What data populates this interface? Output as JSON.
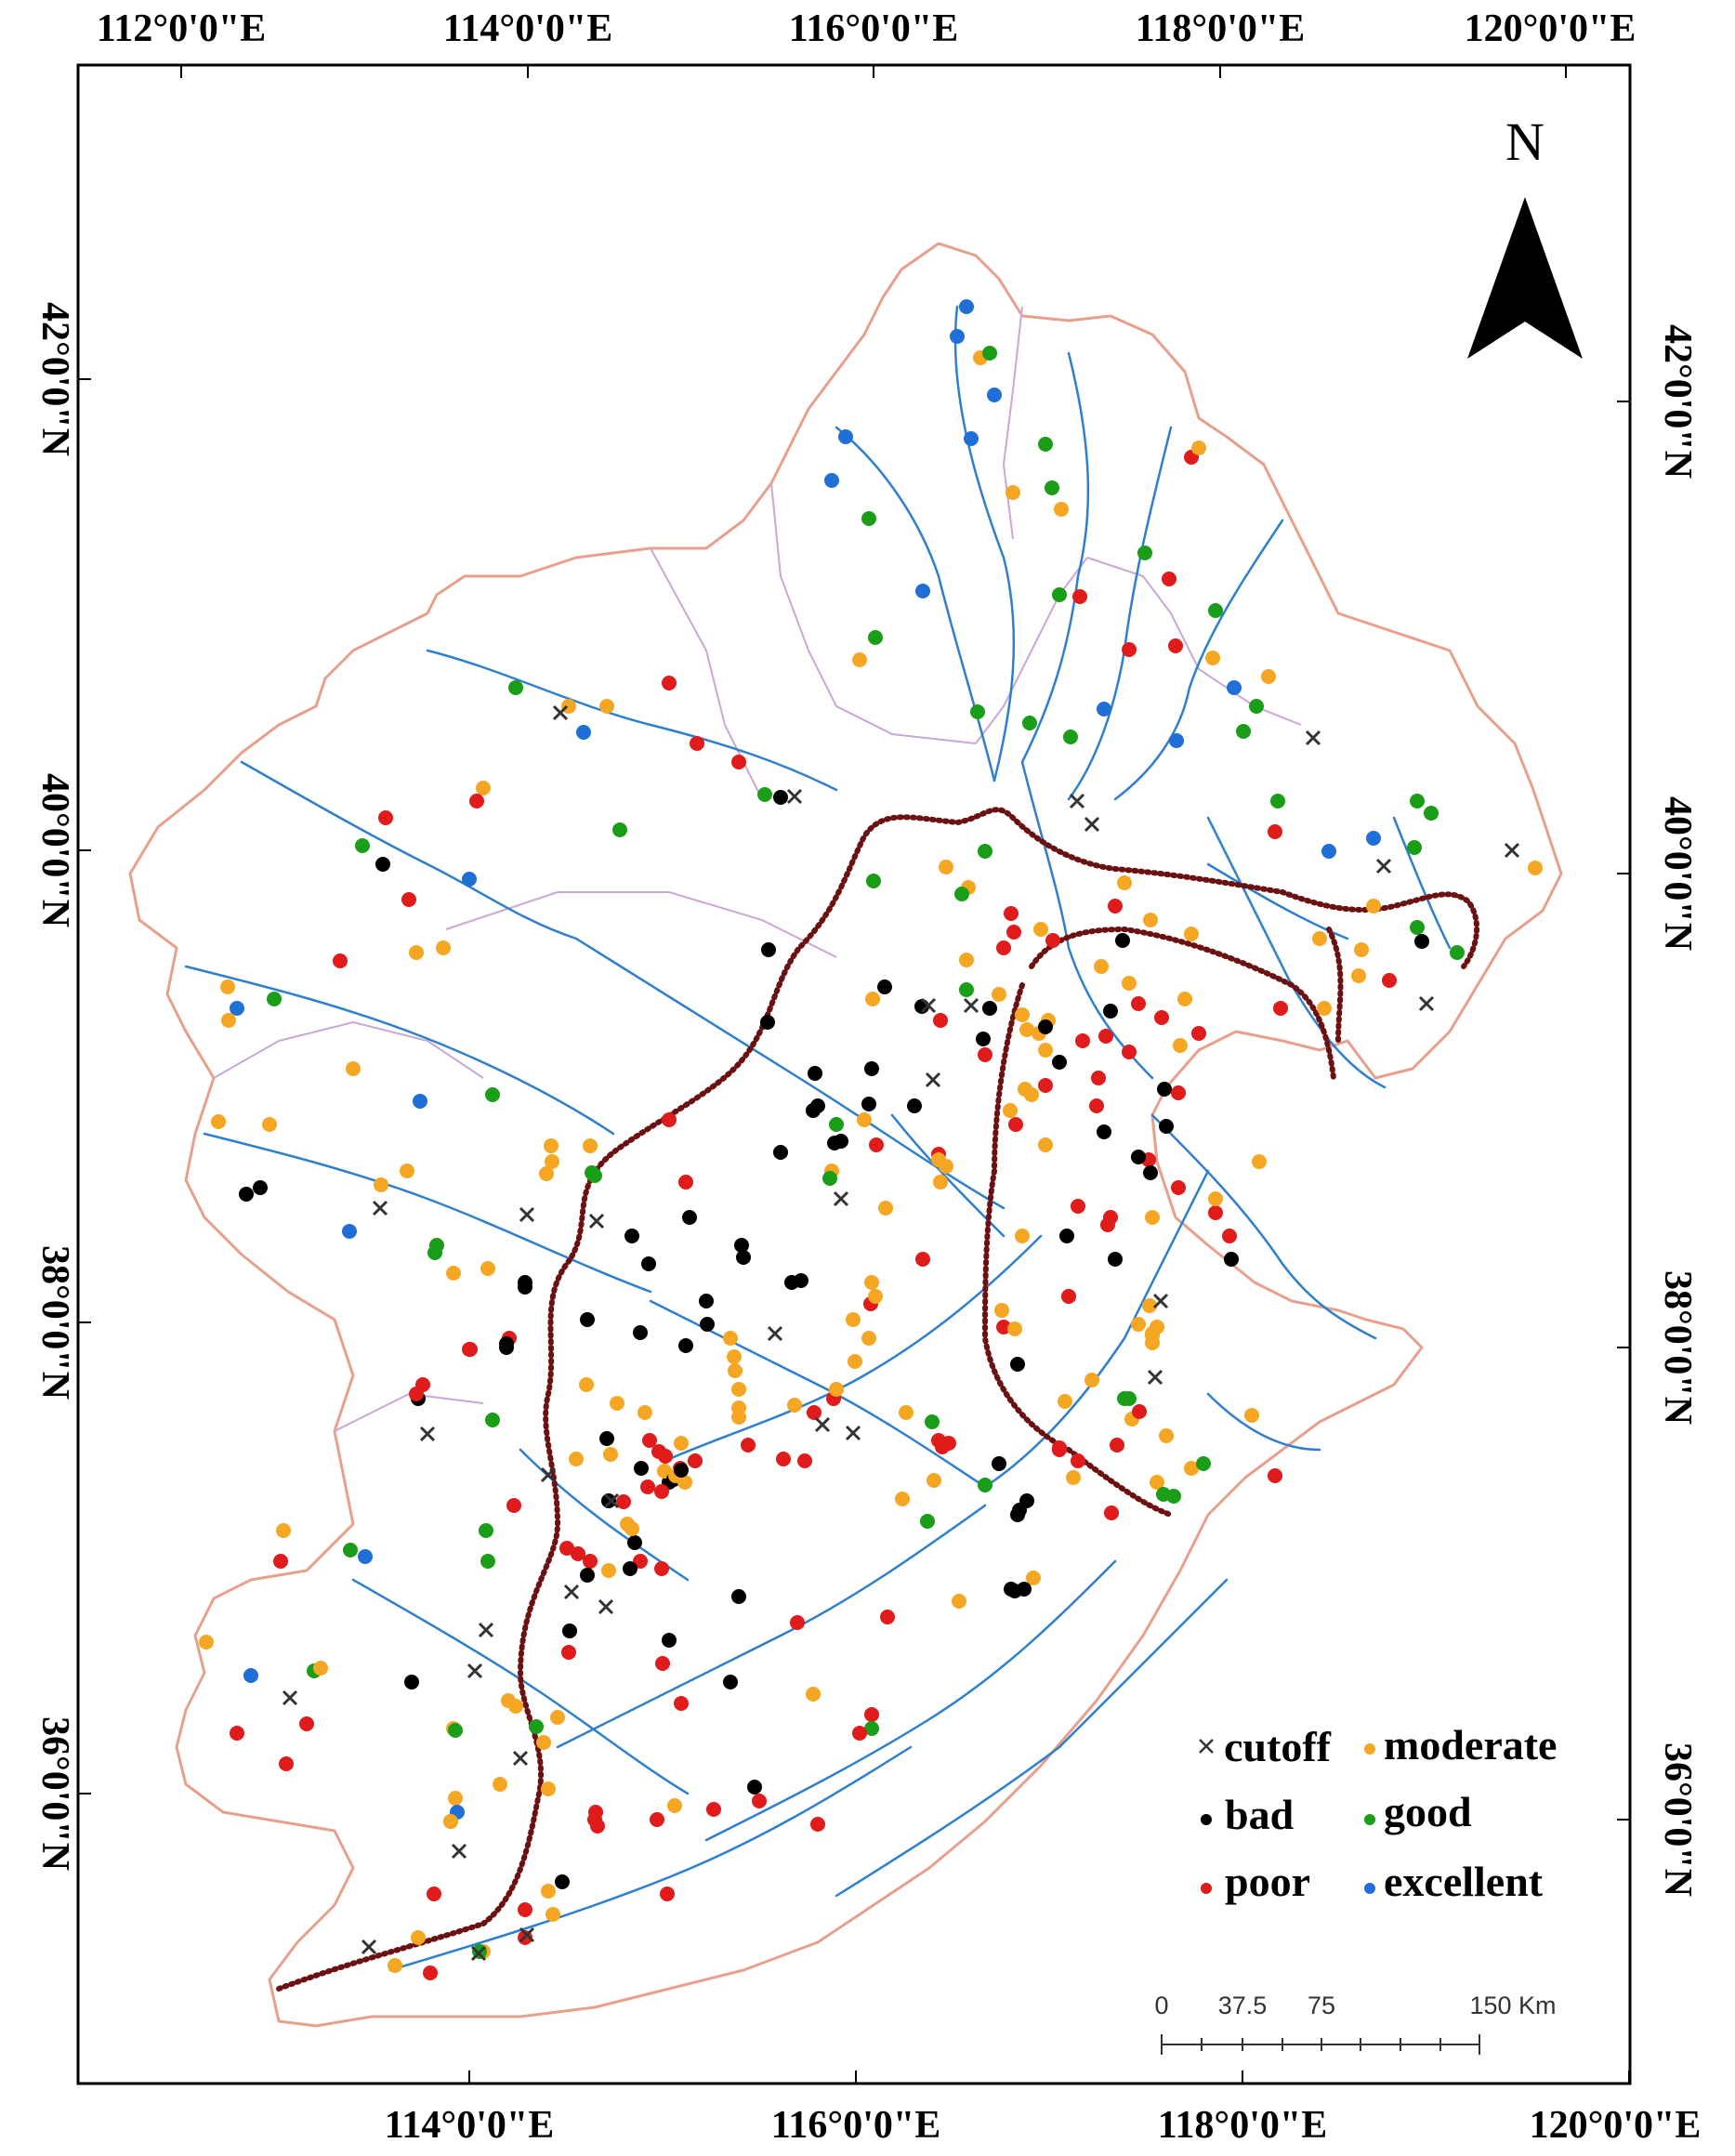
{
  "axes": {
    "top_labels": [
      "112°0'0\"E",
      "114°0'0\"E",
      "116°0'0\"E",
      "118°0'0\"E",
      "120°0'0\"E"
    ],
    "bottom_labels": [
      "114°0'0\"E",
      "116°0'0\"E",
      "118°0'0\"E",
      "120°0'0\"E"
    ],
    "left_labels": [
      "42°0'0\"N",
      "40°0'0\"N",
      "38°0'0\"N",
      "36°0'0\"N"
    ],
    "right_labels": [
      "42°0'0\"N",
      "40°0'0\"N",
      "38°0'0\"N",
      "36°0'0\"N"
    ]
  },
  "north_arrow": {
    "label": "N"
  },
  "legend": {
    "items": [
      {
        "label": "cutoff",
        "symbol": "cross",
        "color": "#333333"
      },
      {
        "label": "moderate",
        "symbol": "dot",
        "color": "#f5a623"
      },
      {
        "label": "bad",
        "symbol": "dot",
        "color": "#000000"
      },
      {
        "label": "good",
        "symbol": "dot",
        "color": "#1a9e1a"
      },
      {
        "label": "poor",
        "symbol": "dot",
        "color": "#e01b1b"
      },
      {
        "label": "excellent",
        "symbol": "dot",
        "color": "#1f6fd6"
      }
    ]
  },
  "scale_bar": {
    "labels": [
      "0",
      "37.5",
      "75",
      "150 Km"
    ]
  },
  "colors": {
    "river": "#2f7fcf",
    "basin_outline": "#e8a08c",
    "subbasin_outline": "#c9a7d6",
    "boundary_line": "#6b1111",
    "frame": "#000000"
  }
}
